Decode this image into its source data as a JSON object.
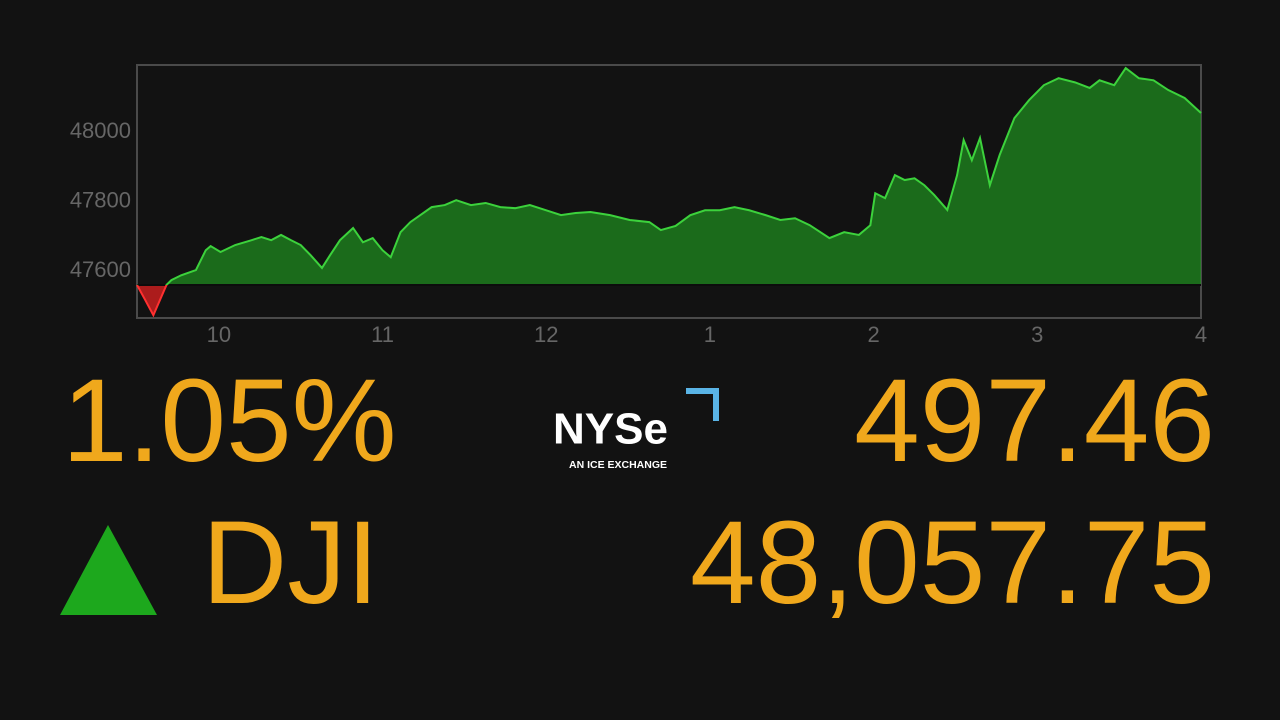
{
  "chart_data": {
    "type": "area",
    "x": [
      9.5,
      9.55,
      9.6,
      9.68,
      9.71,
      9.77,
      9.86,
      9.92,
      9.95,
      10.01,
      10.1,
      10.2,
      10.26,
      10.32,
      10.38,
      10.44,
      10.5,
      10.56,
      10.63,
      10.68,
      10.74,
      10.82,
      10.88,
      10.94,
      11.0,
      11.05,
      11.11,
      11.17,
      11.23,
      11.3,
      11.38,
      11.45,
      11.54,
      11.63,
      11.72,
      11.81,
      11.9,
      12.0,
      12.09,
      12.18,
      12.27,
      12.39,
      12.51,
      12.63,
      12.7,
      12.79,
      12.88,
      12.97,
      13.06,
      13.15,
      13.24,
      13.34,
      13.43,
      13.52,
      13.61,
      13.73,
      13.82,
      13.91,
      13.98,
      14.01,
      14.07,
      14.13,
      14.19,
      14.25,
      14.31,
      14.37,
      14.45,
      14.51,
      14.55,
      14.6,
      14.65,
      14.71,
      14.77,
      14.86,
      14.95,
      15.04,
      15.13,
      15.23,
      15.32,
      15.38,
      15.47,
      15.54,
      15.62,
      15.71,
      15.8,
      15.9,
      16.0
    ],
    "values": [
      47560,
      47517,
      47473,
      47560,
      47574,
      47588,
      47603,
      47660,
      47672,
      47655,
      47675,
      47689,
      47698,
      47689,
      47704,
      47689,
      47675,
      47646,
      47609,
      47646,
      47689,
      47724,
      47683,
      47695,
      47660,
      47640,
      47712,
      47741,
      47761,
      47784,
      47790,
      47804,
      47790,
      47796,
      47784,
      47781,
      47790,
      47775,
      47761,
      47767,
      47770,
      47761,
      47747,
      47741,
      47718,
      47730,
      47761,
      47775,
      47775,
      47784,
      47775,
      47761,
      47747,
      47752,
      47732,
      47695,
      47712,
      47704,
      47732,
      47824,
      47810,
      47876,
      47862,
      47867,
      47847,
      47819,
      47776,
      47876,
      47977,
      47919,
      47983,
      47847,
      47934,
      48040,
      48092,
      48135,
      48155,
      48143,
      48127,
      48149,
      48135,
      48184,
      48155,
      48149,
      48121,
      48098,
      48055
    ],
    "baseline": 47560,
    "up_color": "#1f8a1f",
    "down_color": "#c81e1e",
    "xlim": [
      9.5,
      16
    ],
    "xticks": [
      10,
      11,
      12,
      {
        "value": 13,
        "label": "1"
      },
      {
        "value": 14,
        "label": "2"
      },
      {
        "value": 15,
        "label": "3"
      },
      {
        "value": 16,
        "label": "4"
      }
    ],
    "ylim": [
      47465,
      48193
    ],
    "yticks": [
      47600,
      47800,
      48000
    ],
    "grid": false
  },
  "ticker": {
    "percent_change": "1.05%",
    "point_change": "497.46",
    "symbol": "DJI",
    "price": "48,057.75"
  },
  "logo": {
    "name": "NYSe",
    "tagline": "AN ICE EXCHANGE"
  }
}
